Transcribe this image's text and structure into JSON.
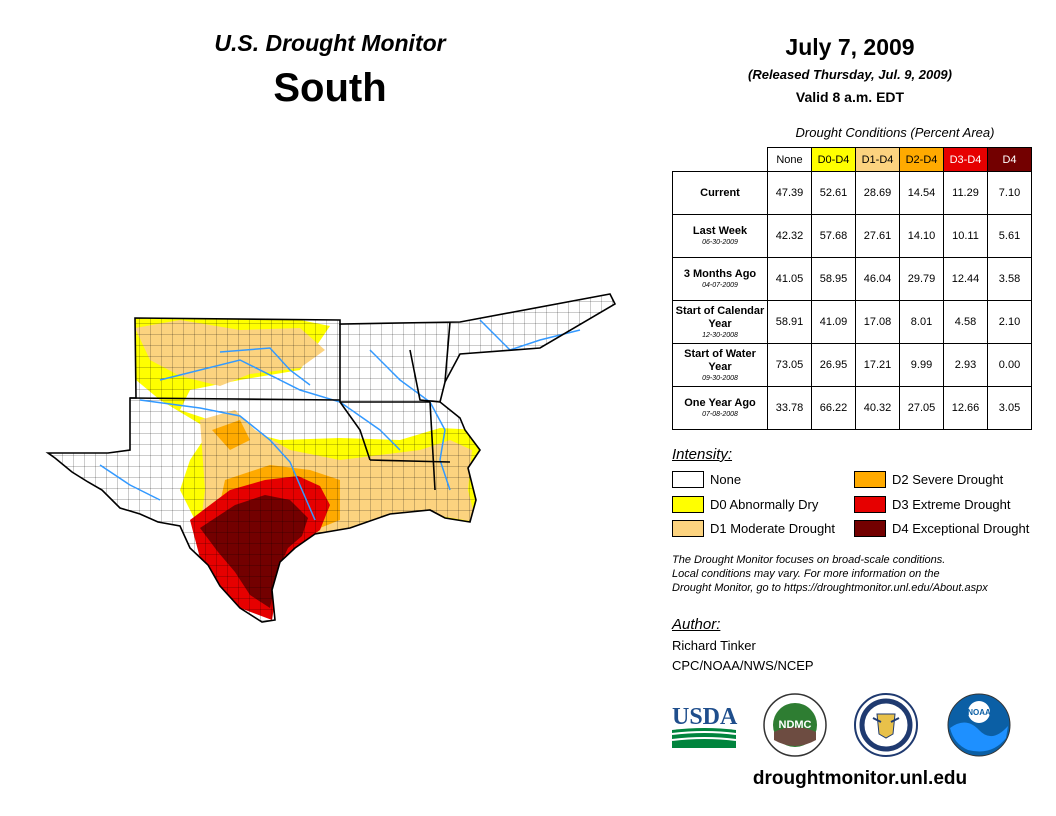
{
  "header": {
    "product": "U.S. Drought Monitor",
    "region": "South",
    "date": "July 7, 2009",
    "released": "(Released Thursday, Jul. 9, 2009)",
    "valid": "Valid 8 a.m. EDT"
  },
  "table": {
    "title": "Drought Conditions (Percent Area)",
    "columns": [
      {
        "label": "None",
        "color": "#ffffff",
        "text_color": "#000000"
      },
      {
        "label": "D0-D4",
        "color": "#ffff00",
        "text_color": "#000000"
      },
      {
        "label": "D1-D4",
        "color": "#fcd37f",
        "text_color": "#000000"
      },
      {
        "label": "D2-D4",
        "color": "#ffaa00",
        "text_color": "#000000"
      },
      {
        "label": "D3-D4",
        "color": "#e60000",
        "text_color": "#ffffff"
      },
      {
        "label": "D4",
        "color": "#730000",
        "text_color": "#ffffff"
      }
    ],
    "rows": [
      {
        "label": "Current",
        "date": "",
        "values": [
          "47.39",
          "52.61",
          "28.69",
          "14.54",
          "11.29",
          "7.10"
        ]
      },
      {
        "label": "Last Week",
        "date": "06-30-2009",
        "values": [
          "42.32",
          "57.68",
          "27.61",
          "14.10",
          "10.11",
          "5.61"
        ]
      },
      {
        "label": "3 Months Ago",
        "date": "04-07-2009",
        "values": [
          "41.05",
          "58.95",
          "46.04",
          "29.79",
          "12.44",
          "3.58"
        ]
      },
      {
        "label": "Start of Calendar Year",
        "date": "12-30-2008",
        "values": [
          "58.91",
          "41.09",
          "17.08",
          "8.01",
          "4.58",
          "2.10"
        ]
      },
      {
        "label": "Start of Water Year",
        "date": "09-30-2008",
        "values": [
          "73.05",
          "26.95",
          "17.21",
          "9.99",
          "2.93",
          "0.00"
        ]
      },
      {
        "label": "One Year Ago",
        "date": "07-08-2008",
        "values": [
          "33.78",
          "66.22",
          "40.32",
          "27.05",
          "12.66",
          "3.05"
        ]
      }
    ]
  },
  "legend": {
    "title": "Intensity:",
    "items": [
      {
        "label": "None",
        "color": "#ffffff"
      },
      {
        "label": "D0 Abnormally Dry",
        "color": "#ffff00"
      },
      {
        "label": "D1 Moderate Drought",
        "color": "#fcd37f"
      },
      {
        "label": "D2 Severe Drought",
        "color": "#ffaa00"
      },
      {
        "label": "D3 Extreme Drought",
        "color": "#e60000"
      },
      {
        "label": "D4 Exceptional Drought",
        "color": "#730000"
      }
    ]
  },
  "disclaimer": {
    "line1": "The Drought Monitor focuses on broad-scale conditions.",
    "line2": "Local conditions may vary. For more information on the",
    "line3": "Drought Monitor, go to https://droughtmonitor.unl.edu/About.aspx"
  },
  "author": {
    "title": "Author:",
    "name": "Richard Tinker",
    "org": "CPC/NOAA/NWS/NCEP"
  },
  "logos": {
    "usda": "USDA",
    "ndmc": "NDMC",
    "noaa": "NOAA"
  },
  "website": "droughtmonitor.unl.edu",
  "colors": {
    "river": "#3399ff",
    "border": "#000000"
  }
}
